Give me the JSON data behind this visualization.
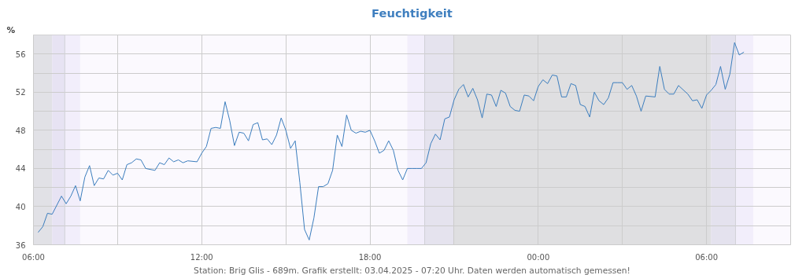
{
  "chart_data": {
    "type": "line",
    "title": "Feuchtigkeit",
    "ylabel": "%",
    "annotations": [
      "Station: Brig Glis - 689m. Grafik erstellt: 03.04.2025 - 07:20 Uhr. Daten werden automatisch gemessen!"
    ],
    "x": [
      "2025-04-02T06:10",
      "2025-04-02T06:20",
      "2025-04-02T06:30",
      "2025-04-02T06:40",
      "2025-04-02T07:00",
      "2025-04-02T07:10",
      "2025-04-02T07:20",
      "2025-04-02T07:30",
      "2025-04-02T07:40",
      "2025-04-02T07:50",
      "2025-04-02T08:00",
      "2025-04-02T08:10",
      "2025-04-02T08:20",
      "2025-04-02T08:30",
      "2025-04-02T08:40",
      "2025-04-02T08:50",
      "2025-04-02T09:00",
      "2025-04-02T09:10",
      "2025-04-02T09:20",
      "2025-04-02T09:30",
      "2025-04-02T09:40",
      "2025-04-02T09:50",
      "2025-04-02T10:00",
      "2025-04-02T10:20",
      "2025-04-02T10:30",
      "2025-04-02T10:40",
      "2025-04-02T10:50",
      "2025-04-02T11:00",
      "2025-04-02T11:10",
      "2025-04-02T11:20",
      "2025-04-02T11:30",
      "2025-04-02T11:50",
      "2025-04-02T12:00",
      "2025-04-02T12:10",
      "2025-04-02T12:20",
      "2025-04-02T12:30",
      "2025-04-02T12:40",
      "2025-04-02T12:50",
      "2025-04-02T13:00",
      "2025-04-02T13:10",
      "2025-04-02T13:20",
      "2025-04-02T13:30",
      "2025-04-02T13:40",
      "2025-04-02T13:50",
      "2025-04-02T14:00",
      "2025-04-02T14:10",
      "2025-04-02T14:20",
      "2025-04-02T14:30",
      "2025-04-02T14:40",
      "2025-04-02T14:50",
      "2025-04-02T15:00",
      "2025-04-02T15:10",
      "2025-04-02T15:20",
      "2025-04-02T15:30",
      "2025-04-02T15:40",
      "2025-04-02T15:50",
      "2025-04-02T16:00",
      "2025-04-02T16:10",
      "2025-04-02T16:20",
      "2025-04-02T16:30",
      "2025-04-02T16:40",
      "2025-04-02T16:50",
      "2025-04-02T17:00",
      "2025-04-02T17:10",
      "2025-04-02T17:20",
      "2025-04-02T17:30",
      "2025-04-02T17:40",
      "2025-04-02T17:50",
      "2025-04-02T18:00",
      "2025-04-02T18:10",
      "2025-04-02T18:20",
      "2025-04-02T18:30",
      "2025-04-02T18:40",
      "2025-04-02T18:50",
      "2025-04-02T19:00",
      "2025-04-02T19:10",
      "2025-04-02T19:20",
      "2025-04-02T19:30",
      "2025-04-02T19:40",
      "2025-04-02T19:50",
      "2025-04-02T20:00",
      "2025-04-02T20:10",
      "2025-04-02T20:20",
      "2025-04-02T20:30",
      "2025-04-02T20:40",
      "2025-04-02T20:50",
      "2025-04-02T21:00",
      "2025-04-02T21:10",
      "2025-04-02T21:20",
      "2025-04-02T21:30",
      "2025-04-02T21:40",
      "2025-04-02T21:50",
      "2025-04-02T22:00",
      "2025-04-02T22:10",
      "2025-04-02T22:20",
      "2025-04-02T22:30",
      "2025-04-02T22:40",
      "2025-04-02T22:50",
      "2025-04-02T23:00",
      "2025-04-02T23:10",
      "2025-04-02T23:20",
      "2025-04-02T23:30",
      "2025-04-02T23:40",
      "2025-04-02T23:50",
      "2025-04-03T00:00",
      "2025-04-03T00:10",
      "2025-04-03T00:20",
      "2025-04-03T00:30",
      "2025-04-03T00:40",
      "2025-04-03T00:50",
      "2025-04-03T01:00",
      "2025-04-03T01:10",
      "2025-04-03T01:20",
      "2025-04-03T01:30",
      "2025-04-03T01:40",
      "2025-04-03T01:50",
      "2025-04-03T02:00",
      "2025-04-03T02:10",
      "2025-04-03T02:20",
      "2025-04-03T02:30",
      "2025-04-03T02:40",
      "2025-04-03T02:50",
      "2025-04-03T03:00",
      "2025-04-03T03:10",
      "2025-04-03T03:20",
      "2025-04-03T03:30",
      "2025-04-03T03:40",
      "2025-04-03T03:50",
      "2025-04-03T04:10",
      "2025-04-03T04:20",
      "2025-04-03T04:30",
      "2025-04-03T04:40",
      "2025-04-03T04:50",
      "2025-04-03T05:00",
      "2025-04-03T05:20",
      "2025-04-03T05:30",
      "2025-04-03T05:40",
      "2025-04-03T05:50",
      "2025-04-03T06:00",
      "2025-04-03T06:10",
      "2025-04-03T06:20",
      "2025-04-03T06:30",
      "2025-04-03T06:40",
      "2025-04-03T06:50",
      "2025-04-03T07:00",
      "2025-04-03T07:10",
      "2025-04-03T07:20"
    ],
    "series": [
      {
        "color": "#3b7dbd",
        "values": [
          37.3,
          37.9,
          39.3,
          39.2,
          41.1,
          40.3,
          41.1,
          42.2,
          40.6,
          43.1,
          44.3,
          42.2,
          43.0,
          42.9,
          43.8,
          43.3,
          43.5,
          42.8,
          44.4,
          44.6,
          45.0,
          44.9,
          44.0,
          43.8,
          44.6,
          44.4,
          45.1,
          44.7,
          44.9,
          44.6,
          44.8,
          44.7,
          45.6,
          46.3,
          48.2,
          48.3,
          48.2,
          51.0,
          49.0,
          46.4,
          47.8,
          47.7,
          46.9,
          48.6,
          48.8,
          47.0,
          47.1,
          46.5,
          47.5,
          49.3,
          48.0,
          46.1,
          46.9,
          42.5,
          37.6,
          36.5,
          38.8,
          42.1,
          42.1,
          42.4,
          43.8,
          47.5,
          46.3,
          49.6,
          48.0,
          47.7,
          47.9,
          47.8,
          48.0,
          46.9,
          45.6,
          45.9,
          46.9,
          45.9,
          43.8,
          42.8,
          44.0,
          44.0,
          44.0,
          44.0,
          44.6,
          46.6,
          47.6,
          47.0,
          49.2,
          49.4,
          51.2,
          52.3,
          52.8,
          51.5,
          52.4,
          51.2,
          49.3,
          51.8,
          51.7,
          50.5,
          52.2,
          51.9,
          50.5,
          50.1,
          50.0,
          51.7,
          51.6,
          51.1,
          52.6,
          53.3,
          52.9,
          53.8,
          53.7,
          51.5,
          51.5,
          52.9,
          52.7,
          50.7,
          50.5,
          49.4,
          52.0,
          51.1,
          50.7,
          51.4,
          53.0,
          53.0,
          53.0,
          52.3,
          52.7,
          51.6,
          50.0,
          51.6,
          51.5,
          54.7,
          52.3,
          51.8,
          51.8,
          52.7,
          51.8,
          51.1,
          51.2,
          50.3,
          51.7,
          52.2,
          52.8,
          54.7,
          52.3,
          53.9,
          57.2,
          55.9,
          56.2
        ]
      }
    ],
    "xlim": [
      "2025-04-02T06:00",
      "2025-04-03T09:00"
    ],
    "xticks": [
      {
        "value": "2025-04-02T06:00",
        "label": "06:00"
      },
      {
        "value": "2025-04-02T09:00",
        "label": null
      },
      {
        "value": "2025-04-02T12:00",
        "label": "12:00"
      },
      {
        "value": "2025-04-02T15:00",
        "label": null
      },
      {
        "value": "2025-04-02T18:00",
        "label": "18:00"
      },
      {
        "value": "2025-04-02T21:00",
        "label": null
      },
      {
        "value": "2025-04-03T00:00",
        "label": "00:00"
      },
      {
        "value": "2025-04-03T03:00",
        "label": null
      },
      {
        "value": "2025-04-03T06:00",
        "label": "06:00"
      }
    ],
    "ylim": [
      36,
      58
    ],
    "yticks": [
      36,
      {
        "value": 38,
        "label": null
      },
      40,
      {
        "value": 42,
        "label": null
      },
      44,
      {
        "value": 46,
        "label": null
      },
      48,
      {
        "value": 50,
        "label": null
      },
      52,
      {
        "value": 54,
        "label": null
      },
      56,
      {
        "value": 58,
        "label": null
      }
    ],
    "grid": true,
    "marker": "none",
    "line_style": "solid",
    "bands": [
      {
        "axis": "x",
        "from": "2025-04-02T06:00",
        "to": "2025-04-02T06:40",
        "label": null,
        "color": "#e1e1e6"
      },
      {
        "axis": "x",
        "from": "2025-04-02T06:40",
        "to": "2025-04-02T07:07",
        "label": null,
        "color": "#e7e3f3"
      },
      {
        "axis": "x",
        "from": "2025-04-02T07:07",
        "to": "2025-04-02T07:40",
        "label": null,
        "color": "#f2eefb"
      },
      {
        "axis": "x",
        "from": "2025-04-02T19:20",
        "to": "2025-04-02T19:57",
        "label": null,
        "color": "#f2eefb"
      },
      {
        "axis": "x",
        "from": "2025-04-02T19:57",
        "to": "2025-04-02T21:00",
        "label": null,
        "color": "#e5e3ee"
      },
      {
        "axis": "x",
        "from": "2025-04-02T21:00",
        "to": "2025-04-03T06:10",
        "label": null,
        "color": "#dfdfe1"
      },
      {
        "axis": "x",
        "from": "2025-04-03T06:10",
        "to": "2025-04-03T07:02",
        "label": null,
        "color": "#e4e2ee"
      },
      {
        "axis": "x",
        "from": "2025-04-03T07:02",
        "to": "2025-04-03T07:40",
        "label": null,
        "color": "#f2eefb"
      }
    ],
    "ref_lines": [
      {
        "axis": "x",
        "value": "2025-04-02T07:07",
        "label": null,
        "color": "#d0d0d6"
      },
      {
        "axis": "x",
        "value": "2025-04-02T19:57",
        "label": null,
        "color": "#d0d0d6"
      },
      {
        "axis": "x",
        "value": "2025-04-03T07:02",
        "label": null,
        "color": "#d0d0d6"
      }
    ]
  }
}
